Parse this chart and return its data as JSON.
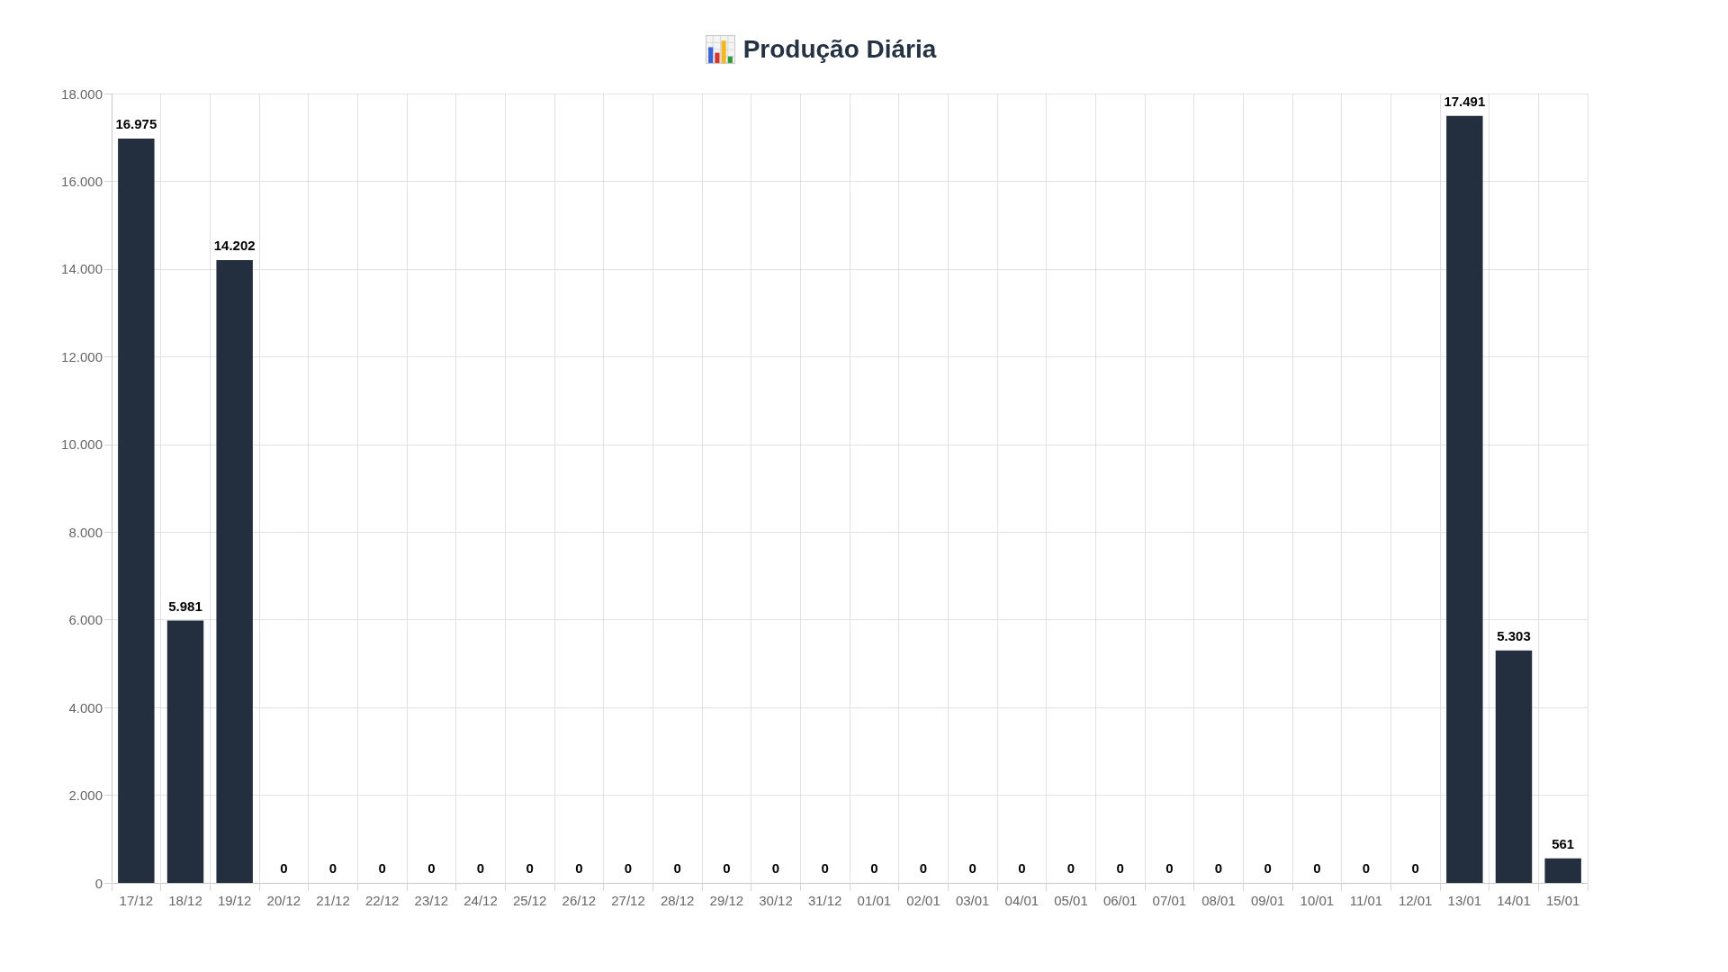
{
  "chart_data": {
    "type": "bar",
    "title": "Produção Diária",
    "categories": [
      "17/12",
      "18/12",
      "19/12",
      "20/12",
      "21/12",
      "22/12",
      "23/12",
      "24/12",
      "25/12",
      "26/12",
      "27/12",
      "28/12",
      "29/12",
      "30/12",
      "31/12",
      "01/01",
      "02/01",
      "03/01",
      "04/01",
      "05/01",
      "06/01",
      "07/01",
      "08/01",
      "09/01",
      "10/01",
      "11/01",
      "12/01",
      "13/01",
      "14/01",
      "15/01"
    ],
    "values": [
      16975,
      5981,
      14202,
      0,
      0,
      0,
      0,
      0,
      0,
      0,
      0,
      0,
      0,
      0,
      0,
      0,
      0,
      0,
      0,
      0,
      0,
      0,
      0,
      0,
      0,
      0,
      0,
      17491,
      5303,
      561
    ],
    "value_labels": [
      "16.975",
      "5.981",
      "14.202",
      "0",
      "0",
      "0",
      "0",
      "0",
      "0",
      "0",
      "0",
      "0",
      "0",
      "0",
      "0",
      "0",
      "0",
      "0",
      "0",
      "0",
      "0",
      "0",
      "0",
      "0",
      "0",
      "0",
      "0",
      "17.491",
      "5.303",
      "561"
    ],
    "color": "#232f3e",
    "ylim": [
      0,
      18000
    ],
    "yticks": [
      0,
      {
        "value": 2000,
        "label": "2.000"
      },
      {
        "value": 4000,
        "label": "4.000"
      },
      {
        "value": 6000,
        "label": "6.000"
      },
      {
        "value": 8000,
        "label": "8.000"
      },
      {
        "value": 10000,
        "label": "10.000"
      },
      {
        "value": 12000,
        "label": "12.000"
      },
      {
        "value": 14000,
        "label": "14.000"
      },
      {
        "value": 16000,
        "label": "16.000"
      },
      {
        "value": 18000,
        "label": "18.000"
      }
    ],
    "grid": true
  }
}
